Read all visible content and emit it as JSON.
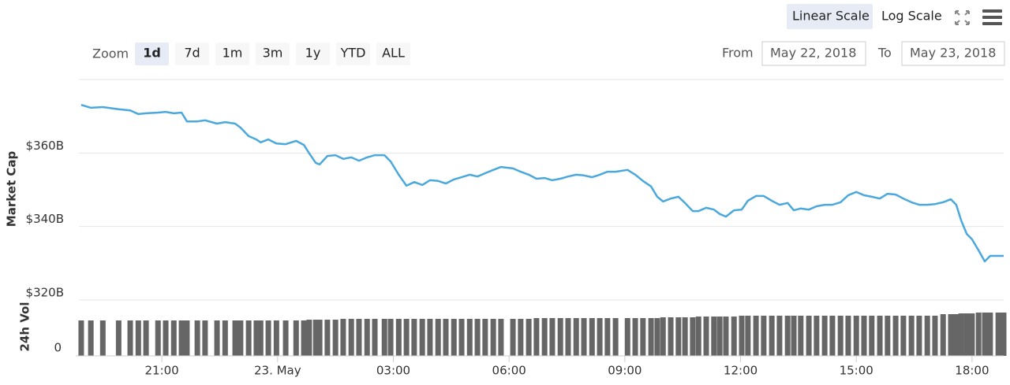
{
  "controls": {
    "scale_buttons": [
      "Linear Scale",
      "Log Scale"
    ],
    "zoom_label": "Zoom",
    "zoom_buttons": [
      "1d",
      "7d",
      "1m",
      "3m",
      "1y",
      "YTD",
      "ALL"
    ],
    "from_label": "From",
    "from_value": "May 22, 2018",
    "to_label": "To",
    "to_value": "May 23, 2018"
  },
  "chart_data": {
    "type": "line",
    "x": [
      18.91,
      19.16,
      19.47,
      19.88,
      20.18,
      20.39,
      20.59,
      20.9,
      21.1,
      21.31,
      21.51,
      21.65,
      21.92,
      22.12,
      22.43,
      22.64,
      22.9,
      23.04,
      23.25,
      23.45,
      23.56,
      23.76,
      23.97,
      24.21,
      24.48,
      24.68,
      24.82,
      24.99,
      25.09,
      25.29,
      25.5,
      25.7,
      25.91,
      26.11,
      26.32,
      26.52,
      26.77,
      26.93,
      27.14,
      27.34,
      27.54,
      27.75,
      27.95,
      28.16,
      28.36,
      28.57,
      28.77,
      28.98,
      29.18,
      29.38,
      29.59,
      29.79,
      30.1,
      30.3,
      30.51,
      30.71,
      30.92,
      31.12,
      31.33,
      31.53,
      31.74,
      31.94,
      32.15,
      32.35,
      32.55,
      32.76,
      33.07,
      33.27,
      33.47,
      33.68,
      33.84,
      33.99,
      34.19,
      34.39,
      34.56,
      34.76,
      34.91,
      35.11,
      35.31,
      35.46,
      35.62,
      35.83,
      36.03,
      36.19,
      36.4,
      36.6,
      36.81,
      37.01,
      37.22,
      37.38,
      37.56,
      37.77,
      37.97,
      38.18,
      38.38,
      38.59,
      38.79,
      39.0,
      39.2,
      39.4,
      39.61,
      39.81,
      40.02,
      40.22,
      40.43,
      40.63,
      40.84,
      41.04,
      41.25,
      41.45,
      41.59,
      41.72,
      41.86,
      42.0,
      42.17,
      42.33,
      42.47,
      42.68,
      42.82
    ],
    "series": [
      {
        "name": "Market Cap",
        "color": "#4aa8dc",
        "values": [
          373.1,
          372.3,
          372.5,
          371.9,
          371.6,
          370.6,
          370.8,
          371.0,
          371.2,
          370.8,
          371.0,
          368.6,
          368.6,
          368.9,
          368.0,
          368.4,
          368.0,
          366.9,
          364.6,
          363.7,
          362.9,
          363.7,
          362.6,
          362.4,
          363.3,
          362.2,
          359.9,
          357.3,
          356.9,
          359.2,
          359.4,
          358.4,
          358.8,
          357.9,
          358.8,
          359.4,
          359.4,
          357.7,
          354.1,
          351.1,
          352.1,
          351.3,
          352.6,
          352.4,
          351.7,
          352.8,
          353.4,
          354.1,
          353.6,
          354.5,
          355.4,
          356.2,
          355.8,
          354.9,
          354.1,
          353.0,
          353.2,
          352.6,
          353.0,
          353.6,
          354.1,
          353.9,
          353.4,
          354.1,
          354.9,
          354.9,
          355.4,
          354.1,
          352.4,
          350.9,
          348.1,
          346.8,
          347.6,
          348.1,
          346.4,
          344.2,
          344.2,
          345.1,
          344.6,
          343.4,
          342.7,
          344.4,
          344.6,
          347.0,
          348.3,
          348.3,
          347.0,
          345.9,
          346.4,
          344.4,
          344.9,
          344.6,
          345.5,
          345.9,
          345.9,
          346.6,
          348.5,
          349.4,
          348.5,
          348.1,
          347.6,
          348.9,
          348.7,
          347.6,
          346.6,
          345.9,
          345.9,
          346.1,
          346.6,
          347.4,
          345.9,
          341.6,
          338.0,
          336.5,
          333.5,
          330.5,
          332.0,
          332.0,
          332.0
        ]
      },
      {
        "name": "24h Vol",
        "color": "#666666",
        "axis": "y2",
        "values": [
          5.07,
          5.07,
          5.07,
          5.07,
          5.07,
          5.07,
          5.07,
          5.07,
          5.07,
          5.07,
          5.07,
          5.07,
          5.07,
          5.07,
          5.07,
          5.07,
          5.07,
          5.07,
          5.07,
          5.07,
          5.07,
          5.07,
          5.07,
          5.07,
          5.07,
          5.07,
          5.18,
          5.18,
          5.18,
          5.18,
          5.18,
          5.3,
          5.3,
          5.3,
          5.3,
          5.3,
          5.3,
          5.3,
          5.3,
          5.3,
          5.3,
          5.3,
          5.3,
          5.3,
          5.3,
          5.3,
          5.3,
          5.3,
          5.3,
          5.3,
          5.3,
          5.3,
          5.3,
          5.3,
          5.3,
          5.41,
          5.41,
          5.41,
          5.41,
          5.41,
          5.41,
          5.41,
          5.41,
          5.41,
          5.41,
          5.41,
          5.41,
          5.41,
          5.41,
          5.41,
          5.41,
          5.52,
          5.52,
          5.52,
          5.52,
          5.52,
          5.63,
          5.63,
          5.63,
          5.63,
          5.63,
          5.63,
          5.75,
          5.75,
          5.75,
          5.75,
          5.75,
          5.75,
          5.75,
          5.75,
          5.75,
          5.75,
          5.75,
          5.75,
          5.75,
          5.75,
          5.75,
          5.75,
          5.75,
          5.75,
          5.75,
          5.75,
          5.75,
          5.75,
          5.75,
          5.75,
          5.75,
          5.75,
          5.97,
          5.97,
          5.97,
          6.08,
          6.08,
          6.08,
          6.2,
          6.2,
          6.2,
          6.2,
          6.2
        ]
      }
    ],
    "xlim": [
      18.85,
      42.82
    ],
    "xticks": [
      {
        "value": 21,
        "label": "21:00"
      },
      {
        "value": 24,
        "label": "23. May"
      },
      {
        "value": 27,
        "label": "03:00"
      },
      {
        "value": 30,
        "label": "06:00"
      },
      {
        "value": 33,
        "label": "09:00"
      },
      {
        "value": 36,
        "label": "12:00"
      },
      {
        "value": 39,
        "label": "15:00"
      },
      {
        "value": 42,
        "label": "18:00"
      }
    ],
    "ylim": [
      320,
      380
    ],
    "yticks": [
      {
        "value": 320,
        "label": "$320B"
      },
      {
        "value": 340,
        "label": "$340B"
      },
      {
        "value": 360,
        "label": "$360B"
      }
    ],
    "y2lim": [
      0,
      8
    ],
    "y2ticks": [
      0
    ],
    "grid": true
  }
}
